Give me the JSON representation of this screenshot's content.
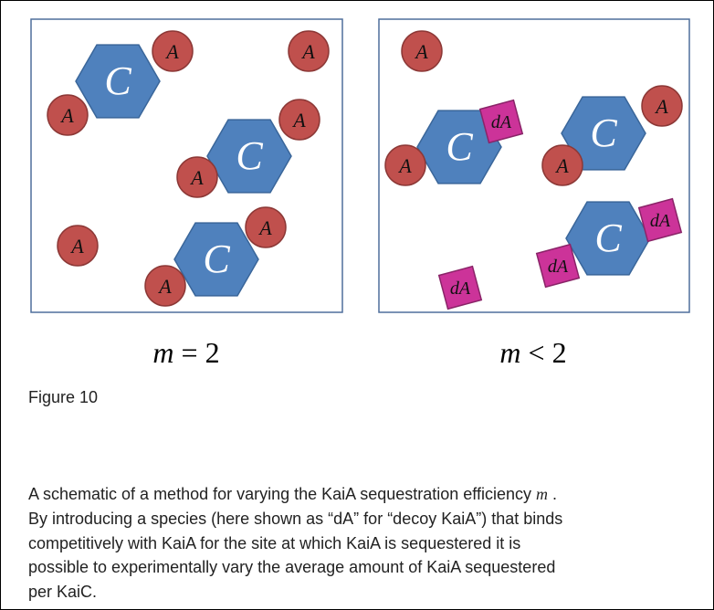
{
  "figure": {
    "panels": [
      {
        "caption": {
          "var": "m",
          "relation": "= 2"
        },
        "shapes": [
          "A",
          "C",
          "A",
          "A",
          "C",
          "A",
          "A",
          "A",
          "C",
          "A",
          "A"
        ]
      },
      {
        "caption": {
          "var": "m",
          "relation": "< 2"
        },
        "shapes": [
          "A",
          "C",
          "dA",
          "A",
          "C",
          "A",
          "A",
          "C",
          "dA",
          "dA",
          "dA"
        ]
      }
    ],
    "label": "Figure 10",
    "caption": {
      "first_line_before": "A schematic of a method for varying the KaiA sequestration efficiency",
      "first_line_var": "m",
      "first_line_after": ".",
      "lines": [
        "By introducing a species (here shown as “dA” for “decoy KaiA”) that binds",
        "competitively with KaiA for the site at which KaiA is sequestered it is",
        "possible to experimentally vary the average amount of KaiA sequestered",
        "per KaiC."
      ]
    }
  }
}
